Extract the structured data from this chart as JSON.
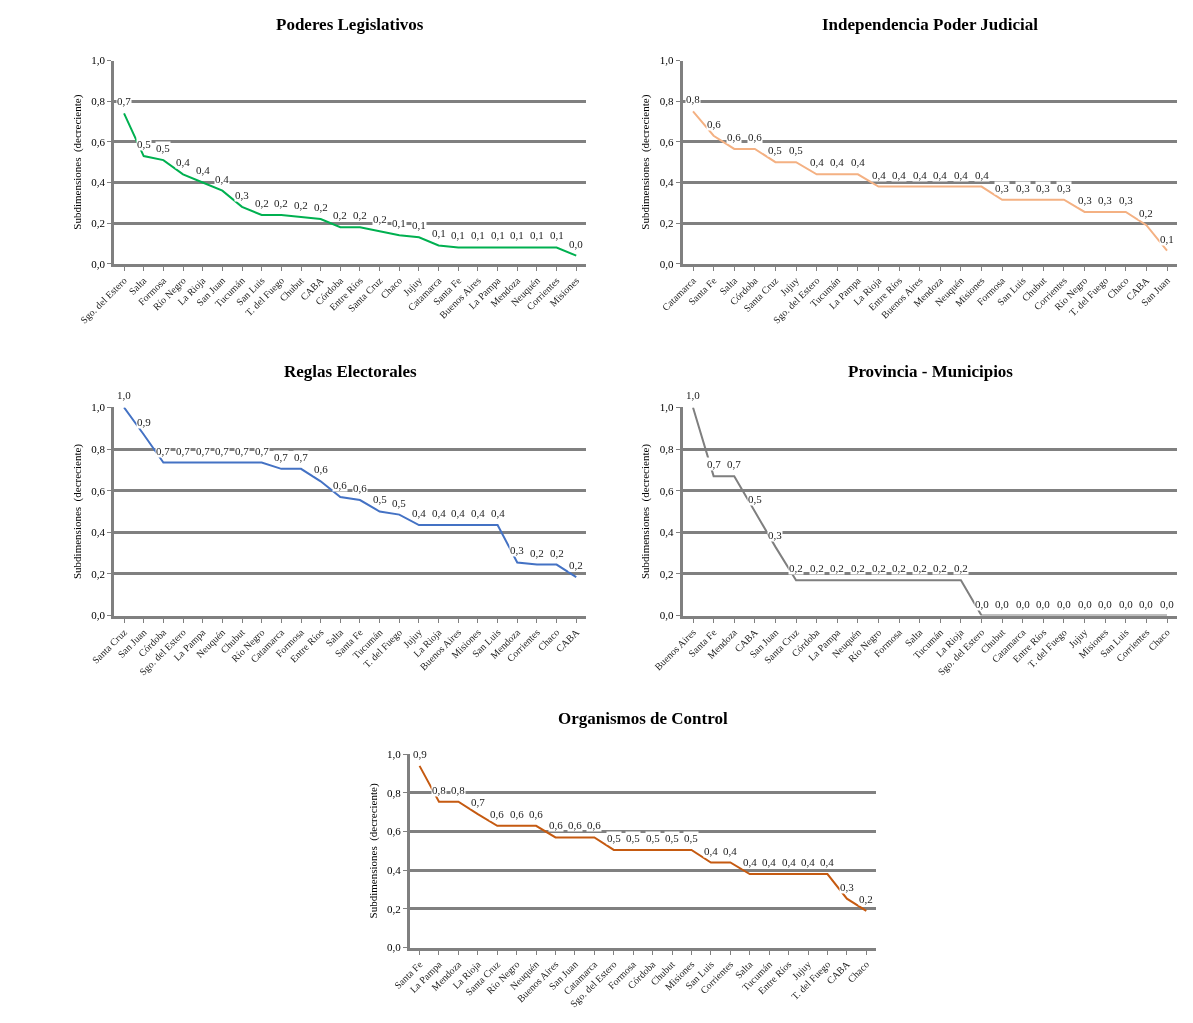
{
  "chart_data": [
    {
      "type": "line",
      "title": "Poderes Legislativos",
      "ylabel": "Subdimensiones  (decreciente)",
      "categories": [
        "Sgo. del Estero",
        "Salta",
        "Formosa",
        "Río Negro",
        "La Rioja",
        "San Juan",
        "Tucumán",
        "San Luis",
        "T. del Fuego",
        "Chubut",
        "CABA",
        "Córdoba",
        "Entre Ríos",
        "Santa Cruz",
        "Chaco",
        "Jujuy",
        "Catamarca",
        "Santa Fe",
        "Buenos Aires",
        "La Pampa",
        "Mendoza",
        "Neuquén",
        "Corrientes",
        "Misiones"
      ],
      "series": [
        {
          "color": "#00b050",
          "values": [
            0.74,
            0.53,
            0.51,
            0.44,
            0.4,
            0.36,
            0.28,
            0.24,
            0.24,
            0.23,
            0.22,
            0.18,
            0.18,
            0.16,
            0.14,
            0.13,
            0.09,
            0.08,
            0.08,
            0.08,
            0.08,
            0.08,
            0.08,
            0.04
          ],
          "value_labels": [
            "0,7",
            "0,5",
            "0,5",
            "0,4",
            "0,4",
            "0,4",
            "0,3",
            "0,2",
            "0,2",
            "0,2",
            "0,2",
            "0,2",
            "0,2",
            "0,2",
            "0,1",
            "0,1",
            "0,1",
            "0,1",
            "0,1",
            "0,1",
            "0,1",
            "0,1",
            "0,1",
            "0,0"
          ]
        }
      ],
      "ylim": [
        0,
        1
      ],
      "yticks": [
        {
          "value": 0,
          "label": "0,0"
        },
        {
          "value": 0.2,
          "label": "0,2"
        },
        {
          "value": 0.4,
          "label": "0,4"
        },
        {
          "value": 0.6,
          "label": "0,6"
        },
        {
          "value": 0.8,
          "label": "0,8"
        },
        {
          "value": 1,
          "label": "1,0"
        }
      ],
      "grid": "y"
    },
    {
      "type": "line",
      "title": "Independencia Poder Judicial",
      "ylabel": "Subdimensiones  (decreciente)",
      "categories": [
        "Catamarca",
        "Santa Fe",
        "Salta",
        "Córdoba",
        "Santa Cruz",
        "Jujuy",
        "Sgo. del Estero",
        "Tucumán",
        "La Pampa",
        "La Rioja",
        "Entre Ríos",
        "Buenos Aires",
        "Mendoza",
        "Neuquén",
        "Misiones",
        "Formosa",
        "San Luis",
        "Chubut",
        "Corrientes",
        "Río Negro",
        "T. del Fuego",
        "Chaco",
        "CABA",
        "San Juan"
      ],
      "series": [
        {
          "color": "#f4b183",
          "values": [
            0.75,
            0.63,
            0.565,
            0.565,
            0.5,
            0.5,
            0.44,
            0.44,
            0.44,
            0.38,
            0.38,
            0.38,
            0.38,
            0.38,
            0.38,
            0.315,
            0.315,
            0.315,
            0.315,
            0.255,
            0.255,
            0.255,
            0.19,
            0.065
          ],
          "value_labels": [
            "0,8",
            "0,6",
            "0,6",
            "0,6",
            "0,5",
            "0,5",
            "0,4",
            "0,4",
            "0,4",
            "0,4",
            "0,4",
            "0,4",
            "0,4",
            "0,4",
            "0,4",
            "0,3",
            "0,3",
            "0,3",
            "0,3",
            "0,3",
            "0,3",
            "0,3",
            "0,2",
            "0,1"
          ]
        }
      ],
      "ylim": [
        0,
        1
      ],
      "yticks": [
        {
          "value": 0,
          "label": "0,0"
        },
        {
          "value": 0.2,
          "label": "0,2"
        },
        {
          "value": 0.4,
          "label": "0,4"
        },
        {
          "value": 0.6,
          "label": "0,6"
        },
        {
          "value": 0.8,
          "label": "0,8"
        },
        {
          "value": 1,
          "label": "1,0"
        }
      ],
      "grid": "y"
    },
    {
      "type": "line",
      "title": "Reglas Electorales",
      "ylabel": "Subdimensiones  (decreciente)",
      "categories": [
        "Santa Cruz",
        "San Juan",
        "Córdoba",
        "Sgo. del Estero",
        "La Pampa",
        "Neuquén",
        "Chubut",
        "Río Negro",
        "Catamarca",
        "Formosa",
        "Entre Ríos",
        "Salta",
        "Santa Fe",
        "Tucumán",
        "T. del Fuego",
        "Jujuy",
        "La Rioja",
        "Buenos Aires",
        "Misiones",
        "San Luis",
        "Mendoza",
        "Corrientes",
        "Chaco",
        "CABA"
      ],
      "series": [
        {
          "color": "#4472c4",
          "values": [
            1.0,
            0.87,
            0.735,
            0.735,
            0.735,
            0.735,
            0.735,
            0.735,
            0.705,
            0.705,
            0.645,
            0.57,
            0.555,
            0.5,
            0.485,
            0.435,
            0.435,
            0.435,
            0.435,
            0.435,
            0.255,
            0.245,
            0.245,
            0.185
          ],
          "value_labels": [
            "1,0",
            "0,9",
            "0,7",
            "0,7",
            "0,7",
            "0,7",
            "0,7",
            "0,7",
            "0,7",
            "0,7",
            "0,6",
            "0,6",
            "0,6",
            "0,5",
            "0,5",
            "0,4",
            "0,4",
            "0,4",
            "0,4",
            "0,4",
            "0,3",
            "0,2",
            "0,2",
            "0,2"
          ]
        }
      ],
      "ylim": [
        0,
        1
      ],
      "yticks": [
        {
          "value": 0,
          "label": "0,0"
        },
        {
          "value": 0.2,
          "label": "0,2"
        },
        {
          "value": 0.4,
          "label": "0,4"
        },
        {
          "value": 0.6,
          "label": "0,6"
        },
        {
          "value": 0.8,
          "label": "0,8"
        },
        {
          "value": 1,
          "label": "1,0"
        }
      ],
      "grid": "y"
    },
    {
      "type": "line",
      "title": "Provincia - Municipios",
      "ylabel": "Subdimensiones  (decreciente)",
      "categories": [
        "Buenos Aires",
        "Santa Fe",
        "Mendoza",
        "CABA",
        "San Juan",
        "Santa Cruz",
        "Córdoba",
        "La Pampa",
        "Neuquén",
        "Río Negro",
        "Formosa",
        "Salta",
        "Tucumán",
        "La Rioja",
        "Sgo. del Estero",
        "Chubut",
        "Catamarca",
        "Entre Ríos",
        "T. del Fuego",
        "Jujuy",
        "Misiones",
        "San Luis",
        "Corrientes",
        "Chaco"
      ],
      "series": [
        {
          "color": "#7f7f7f",
          "values": [
            1.0,
            0.67,
            0.67,
            0.5,
            0.33,
            0.17,
            0.17,
            0.17,
            0.17,
            0.17,
            0.17,
            0.17,
            0.17,
            0.17,
            0.0,
            0.0,
            0.0,
            0.0,
            0.0,
            0.0,
            0.0,
            0.0,
            0.0,
            0.0
          ],
          "value_labels": [
            "1,0",
            "0,7",
            "0,7",
            "0,5",
            "0,3",
            "0,2",
            "0,2",
            "0,2",
            "0,2",
            "0,2",
            "0,2",
            "0,2",
            "0,2",
            "0,2",
            "0,0",
            "0,0",
            "0,0",
            "0,0",
            "0,0",
            "0,0",
            "0,0",
            "0,0",
            "0,0",
            "0,0"
          ]
        }
      ],
      "ylim": [
        0,
        1
      ],
      "yticks": [
        {
          "value": 0,
          "label": "0,0"
        },
        {
          "value": 0.2,
          "label": "0,2"
        },
        {
          "value": 0.4,
          "label": "0,4"
        },
        {
          "value": 0.6,
          "label": "0,6"
        },
        {
          "value": 0.8,
          "label": "0,8"
        },
        {
          "value": 1,
          "label": "1,0"
        }
      ],
      "grid": "y"
    },
    {
      "type": "line",
      "title": "Organismos de Control",
      "ylabel": "Subdimensiones  (decreciente)",
      "categories": [
        "Santa Fe",
        "La Pampa",
        "Mendoza",
        "La Rioja",
        "Santa Cruz",
        "Río Negro",
        "Neuquén",
        "Buenos Aires",
        "San Juan",
        "Catamarca",
        "Sgo. del Estero",
        "Formosa",
        "Córdoba",
        "Chubut",
        "Misiones",
        "San Luis",
        "Corrientes",
        "Salta",
        "Tucumán",
        "Entre Ríos",
        "Jujuy",
        "T. del Fuego",
        "CABA",
        "Chaco"
      ],
      "series": [
        {
          "color": "#c55a11",
          "values": [
            0.94,
            0.755,
            0.755,
            0.69,
            0.63,
            0.63,
            0.63,
            0.57,
            0.57,
            0.57,
            0.505,
            0.505,
            0.505,
            0.505,
            0.505,
            0.44,
            0.44,
            0.38,
            0.38,
            0.38,
            0.38,
            0.38,
            0.253,
            0.19
          ],
          "value_labels": [
            "0,9",
            "0,8",
            "0,8",
            "0,7",
            "0,6",
            "0,6",
            "0,6",
            "0,6",
            "0,6",
            "0,6",
            "0,5",
            "0,5",
            "0,5",
            "0,5",
            "0,5",
            "0,4",
            "0,4",
            "0,4",
            "0,4",
            "0,4",
            "0,4",
            "0,4",
            "0,3",
            "0,2"
          ]
        }
      ],
      "ylim": [
        0,
        1
      ],
      "yticks": [
        {
          "value": 0,
          "label": "0,0"
        },
        {
          "value": 0.2,
          "label": "0,2"
        },
        {
          "value": 0.4,
          "label": "0,4"
        },
        {
          "value": 0.6,
          "label": "0,6"
        },
        {
          "value": 0.8,
          "label": "0,8"
        },
        {
          "value": 1,
          "label": "1,0"
        }
      ],
      "grid": "y"
    }
  ]
}
